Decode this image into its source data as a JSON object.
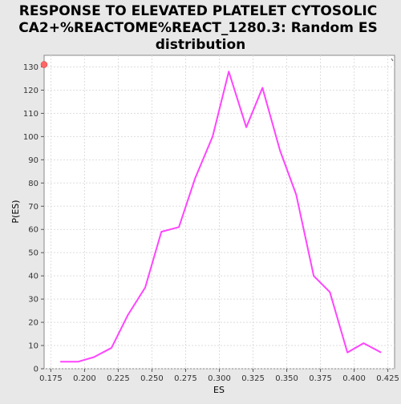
{
  "chart_data": {
    "type": "line",
    "title_lines": [
      "RESPONSE TO ELEVATED PLATELET CYTOSOLIC",
      "CA2+%REACTOME%REACT_1280.3: Random ES",
      "distribution"
    ],
    "xlabel": "ES",
    "ylabel": "P(ES)",
    "xlim": [
      0.17,
      0.43
    ],
    "ylim": [
      0,
      135
    ],
    "x_ticks": [
      "0.175",
      "0.200",
      "0.225",
      "0.250",
      "0.275",
      "0.300",
      "0.325",
      "0.350",
      "0.375",
      "0.400",
      "0.425"
    ],
    "y_ticks": [
      "0",
      "10",
      "20",
      "30",
      "40",
      "50",
      "60",
      "70",
      "80",
      "90",
      "100",
      "110",
      "120",
      "130"
    ],
    "grid": true,
    "colors": {
      "line": "#ff44ff",
      "marker": "#ff6666",
      "plot_bg": "#ffffff",
      "page_bg": "#e8e8e8",
      "grid": "#dddddd"
    },
    "series": [
      {
        "x": [
          0.182,
          0.195,
          0.207,
          0.22,
          0.232,
          0.245,
          0.257,
          0.27,
          0.282,
          0.295,
          0.307,
          0.32,
          0.332,
          0.345,
          0.357,
          0.37,
          0.382,
          0.395,
          0.407,
          0.42
        ],
        "y": [
          3,
          3,
          5,
          9,
          23,
          35,
          59,
          61,
          82,
          100,
          128,
          104,
          121,
          94,
          75,
          40,
          33,
          7,
          11,
          7
        ]
      }
    ],
    "marker_point": {
      "x": 0.17,
      "y": 131
    }
  }
}
